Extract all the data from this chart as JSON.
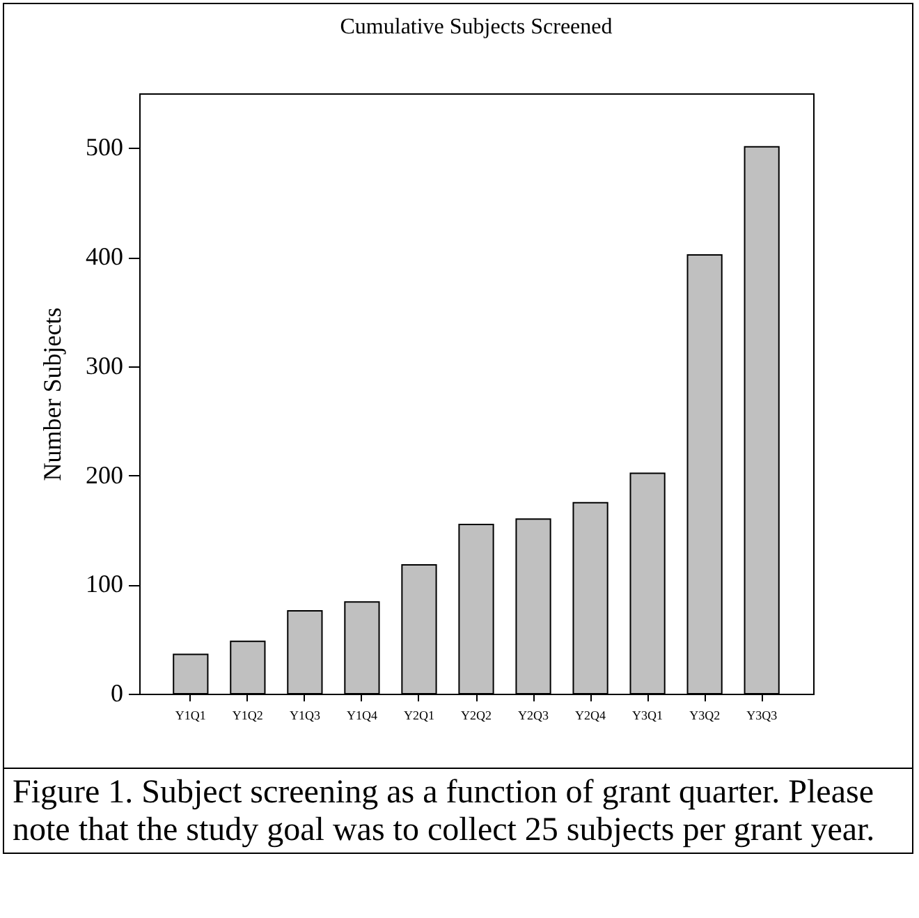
{
  "chart_data": {
    "type": "bar",
    "title": "Cumulative Subjects Screened",
    "ylabel": "Number Subjects",
    "categories": [
      "Y1Q1",
      "Y1Q2",
      "Y1Q3",
      "Y1Q4",
      "Y2Q1",
      "Y2Q2",
      "Y2Q3",
      "Y2Q4",
      "Y3Q1",
      "Y3Q2",
      "Y3Q3"
    ],
    "values": [
      36,
      48,
      76,
      84,
      118,
      155,
      160,
      175,
      202,
      402,
      501
    ],
    "color": "#c0c0c0",
    "ylim": [
      0,
      550
    ],
    "yticks": [
      0,
      100,
      200,
      300,
      400,
      500
    ],
    "grid": false,
    "annotations": [
      "Figure 1. Subject screening as a function of grant quarter. Please note that the study goal was to collect 25 subjects per grant year."
    ]
  }
}
